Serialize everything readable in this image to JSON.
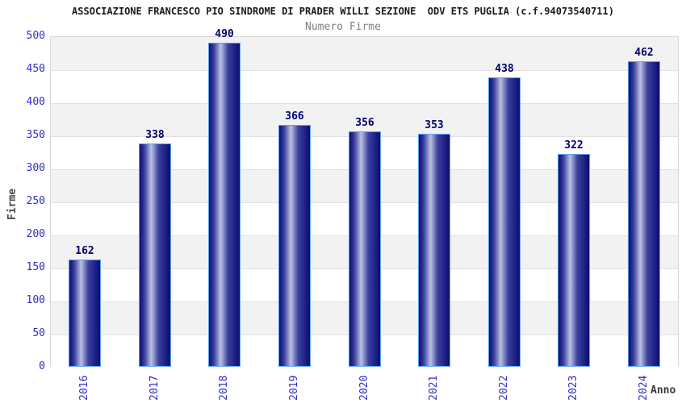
{
  "chart_data": {
    "type": "bar",
    "title": "ASSOCIAZIONE FRANCESCO PIO SINDROME DI PRADER WILLI SEZIONE  ODV ETS PUGLIA (c.f.94073540711)",
    "subtitle": "Numero Firme",
    "xlabel": "Anno",
    "ylabel": "Firme",
    "categories": [
      "2016",
      "2017",
      "2018",
      "2019",
      "2020",
      "2021",
      "2022",
      "2023",
      "2024"
    ],
    "values": [
      162,
      338,
      490,
      366,
      356,
      353,
      438,
      322,
      462
    ],
    "ylim": [
      0,
      500
    ],
    "ytick_step": 50,
    "grid": "alternating-horizontal-bands",
    "legend": "none",
    "value_labels_shown": true
  },
  "colors": {
    "tick_label": "#2e2ecc",
    "value_label": "#00006e",
    "bar_dark": "#0c0c74",
    "bar_highlight": "#bcc2e2",
    "bar_border": "#58a2f0",
    "band_gray": "#f2f2f2",
    "band_white": "#ffffff",
    "gridline": "#e2e2e2",
    "title_text": "#1a1a1a",
    "subtitle_text": "#808080",
    "axis_title_text": "#4a4a4a"
  }
}
